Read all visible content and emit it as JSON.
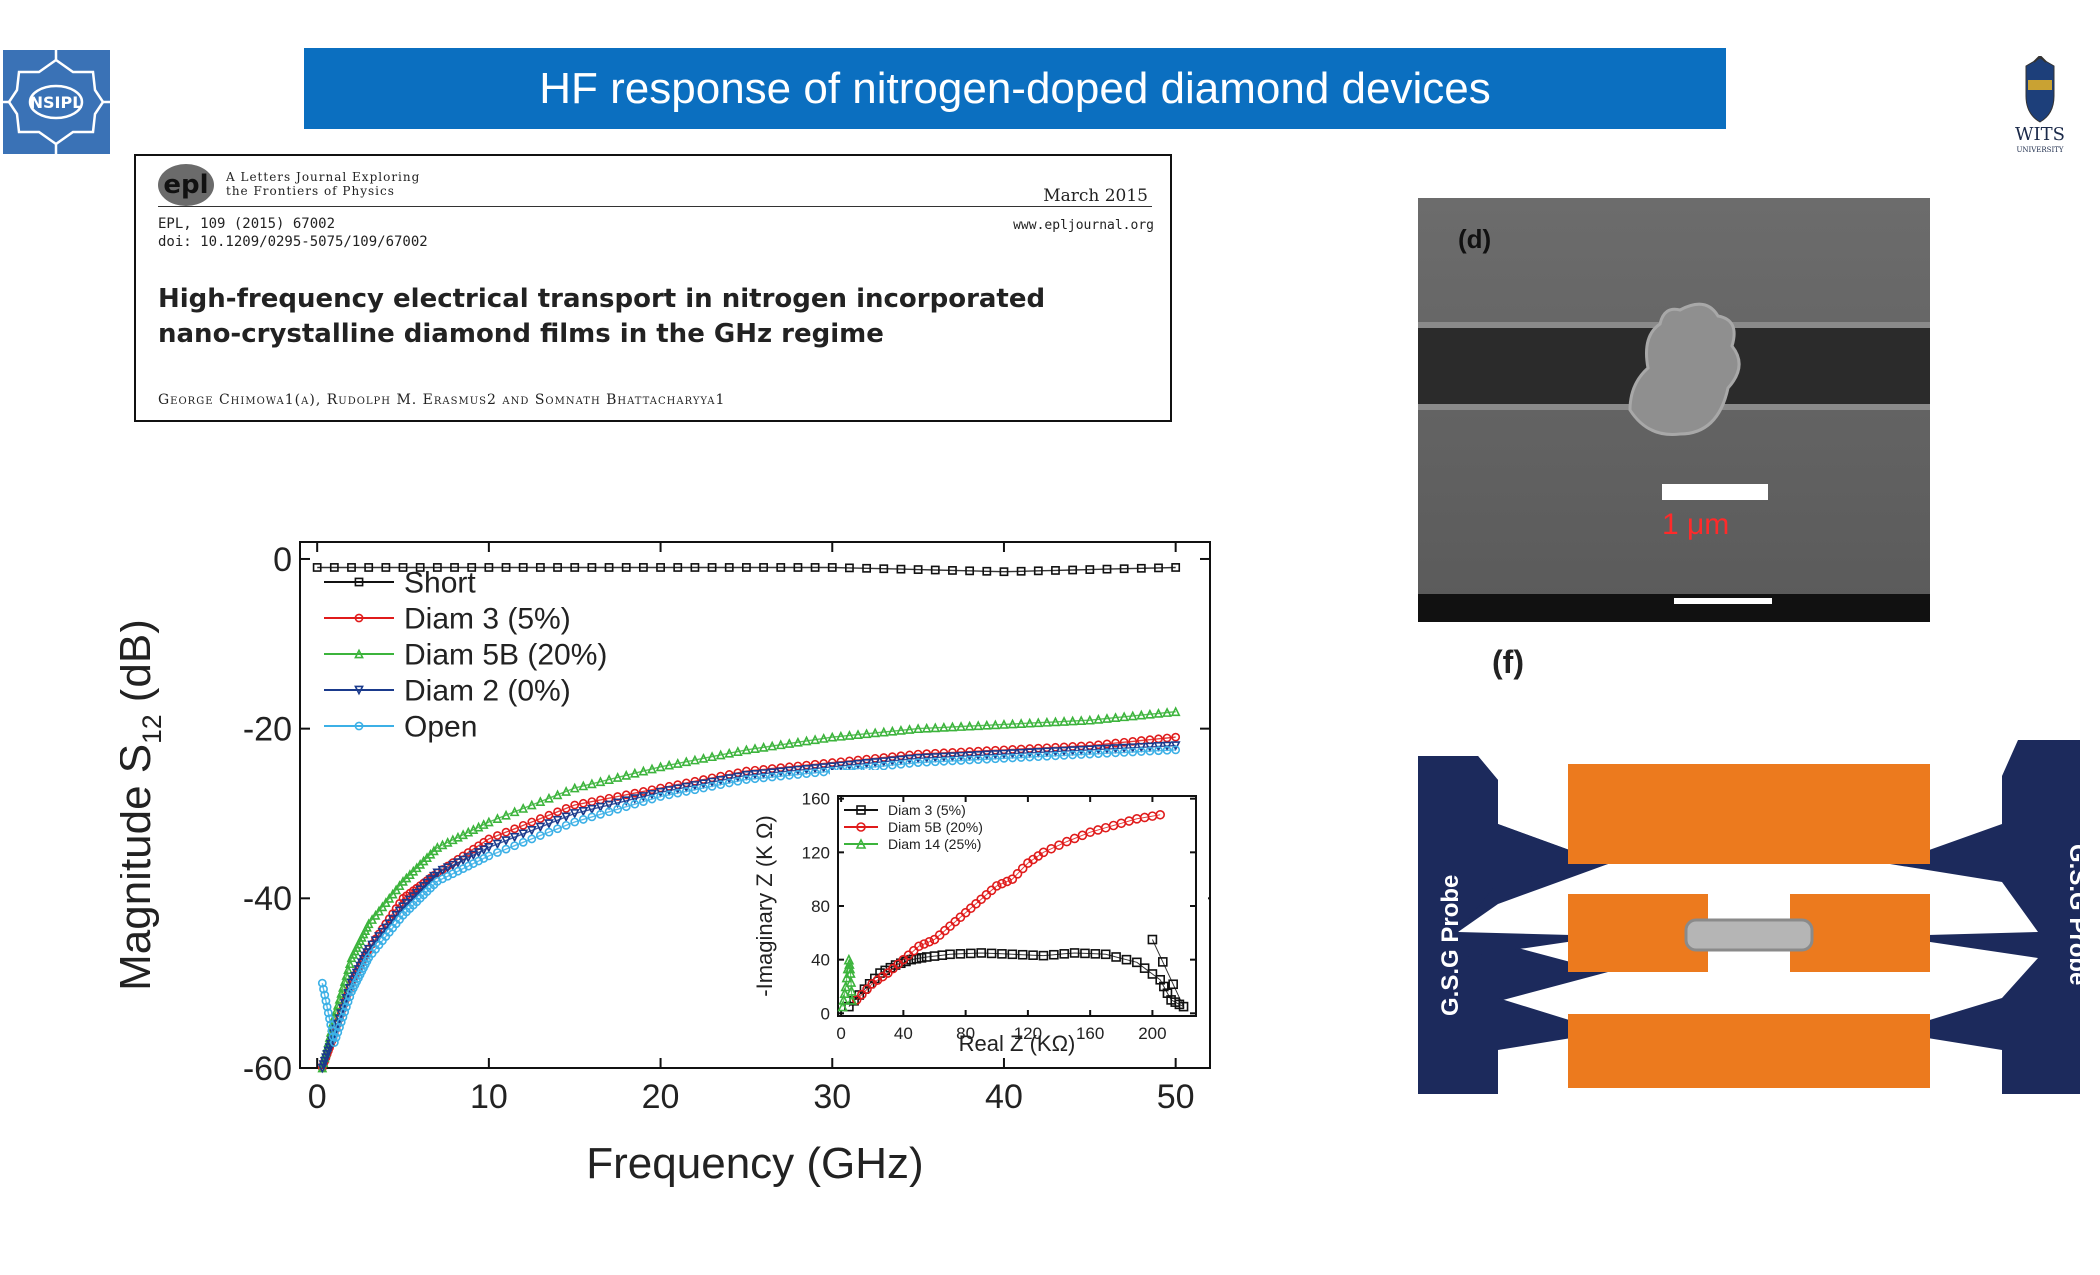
{
  "slide": {
    "title": "HF response of nitrogen-doped diamond devices",
    "logo_left_text": "NSIPL",
    "logo_right_text": "WITS",
    "logo_right_subtext": "UNIVERSITY",
    "title_color": "#0b6fc0"
  },
  "paper": {
    "journal_logo": "epl",
    "journal_tagline_1": "A Letters Journal Exploring",
    "journal_tagline_2": "the Frontiers of Physics",
    "date": "March 2015",
    "citation": "EPL, 109 (2015) 67002",
    "doi": "doi: 10.1209/0295-5075/109/67002",
    "website": "www.epljournal.org",
    "title_line1": "High-frequency electrical transport in nitrogen incorporated",
    "title_line2": "nano-crystalline diamond films in the GHz regime",
    "authors": "George Chimowa1(a), Rudolph M. Erasmus2 and Somnath Bhattacharyya1"
  },
  "sem": {
    "panel_label": "(d)",
    "scale_label": "1 μm",
    "panel_label_f": "(f)"
  },
  "probe": {
    "left_label": "G.S.G   Probe",
    "right_label": "G.S.G   Probe"
  },
  "chart_data": [
    {
      "type": "scatter",
      "xlabel": "Frequency (GHz)",
      "ylabel": "Magnitude S",
      "ylabel_sub": "12",
      "ylabel_unit": " (dB)",
      "xlim": [
        -1,
        52
      ],
      "ylim": [
        -60,
        2
      ],
      "xticks": [
        "0",
        "10",
        "20",
        "30",
        "40",
        "50"
      ],
      "yticks": [
        "0",
        "-20",
        "-40",
        "-60"
      ],
      "legend_position": "top-left",
      "series": [
        {
          "name": "Short",
          "color": "#111111",
          "marker": "square",
          "x": [
            0,
            10,
            20,
            30,
            40,
            50
          ],
          "y": [
            -1,
            -1,
            -1,
            -1,
            -1.5,
            -1
          ]
        },
        {
          "name": "Diam 3 (5%)",
          "color": "#e01b1b",
          "marker": "circle",
          "x": [
            0.3,
            1,
            2,
            3,
            5,
            7,
            10,
            15,
            20,
            25,
            30,
            35,
            40,
            45,
            50
          ],
          "y": [
            -60,
            -56,
            -50,
            -46,
            -40,
            -37,
            -33,
            -29,
            -27,
            -25,
            -24,
            -23,
            -22.5,
            -22,
            -21
          ]
        },
        {
          "name": "Diam 5B (20%)",
          "color": "#3cb43c",
          "marker": "triangle",
          "x": [
            0.3,
            1,
            2,
            3,
            5,
            7,
            10,
            15,
            20,
            25,
            30,
            35,
            40,
            45,
            50
          ],
          "y": [
            -60,
            -54,
            -47,
            -43,
            -38,
            -34,
            -31,
            -27,
            -24.5,
            -22.5,
            -21,
            -20,
            -19.5,
            -19,
            -18
          ]
        },
        {
          "name": "Diam 2 (0%)",
          "color": "#1a3a8c",
          "marker": "triangle-down",
          "x": [
            0.3,
            1,
            2,
            3,
            5,
            7,
            10,
            15,
            20,
            25,
            30,
            35,
            40,
            45,
            50
          ],
          "y": [
            -60,
            -56,
            -50,
            -46,
            -41,
            -37,
            -34,
            -30,
            -27.5,
            -25.5,
            -24.5,
            -23.5,
            -23,
            -22.5,
            -22
          ]
        },
        {
          "name": "Open",
          "color": "#3cb0e6",
          "marker": "circle",
          "x": [
            0.3,
            1,
            2,
            3,
            5,
            7,
            10,
            15,
            20,
            25,
            30,
            35,
            40,
            45,
            50
          ],
          "y": [
            -50,
            -57,
            -51,
            -47,
            -42,
            -38,
            -35,
            -31,
            -28,
            -26,
            -25,
            -24,
            -23.5,
            -23,
            -22.5
          ]
        }
      ]
    },
    {
      "type": "scatter",
      "xlabel": "Real Z (KΩ)",
      "ylabel": "-Imaginary Z (K Ω)",
      "xlim": [
        -2,
        228
      ],
      "ylim": [
        -2,
        162
      ],
      "xticks": [
        "0",
        "40",
        "80",
        "120",
        "160",
        "200"
      ],
      "yticks": [
        "0",
        "40",
        "80",
        "120",
        "160"
      ],
      "legend_position": "top-left",
      "series": [
        {
          "name": "Diam 3 (5%)",
          "color": "#111111",
          "marker": "square",
          "x": [
            5,
            15,
            25,
            35,
            45,
            55,
            70,
            90,
            110,
            130,
            150,
            170,
            190,
            205,
            212,
            220,
            200
          ],
          "y": [
            5,
            18,
            30,
            36,
            40,
            42,
            44,
            45,
            44,
            43,
            45,
            44,
            38,
            25,
            10,
            5,
            55
          ]
        },
        {
          "name": "Diam 5B (20%)",
          "color": "#e01b1b",
          "marker": "circle",
          "x": [
            10,
            20,
            30,
            40,
            50,
            60,
            70,
            80,
            90,
            100,
            110,
            120,
            130,
            145,
            160,
            175,
            190,
            205
          ],
          "y": [
            10,
            22,
            30,
            40,
            50,
            55,
            65,
            75,
            85,
            95,
            100,
            112,
            120,
            128,
            135,
            140,
            145,
            148
          ]
        },
        {
          "name": "Diam 14 (25%)",
          "color": "#3cb43c",
          "marker": "triangle",
          "x": [
            1,
            3,
            5,
            6,
            7
          ],
          "y": [
            5,
            20,
            40,
            30,
            10
          ]
        }
      ]
    }
  ]
}
